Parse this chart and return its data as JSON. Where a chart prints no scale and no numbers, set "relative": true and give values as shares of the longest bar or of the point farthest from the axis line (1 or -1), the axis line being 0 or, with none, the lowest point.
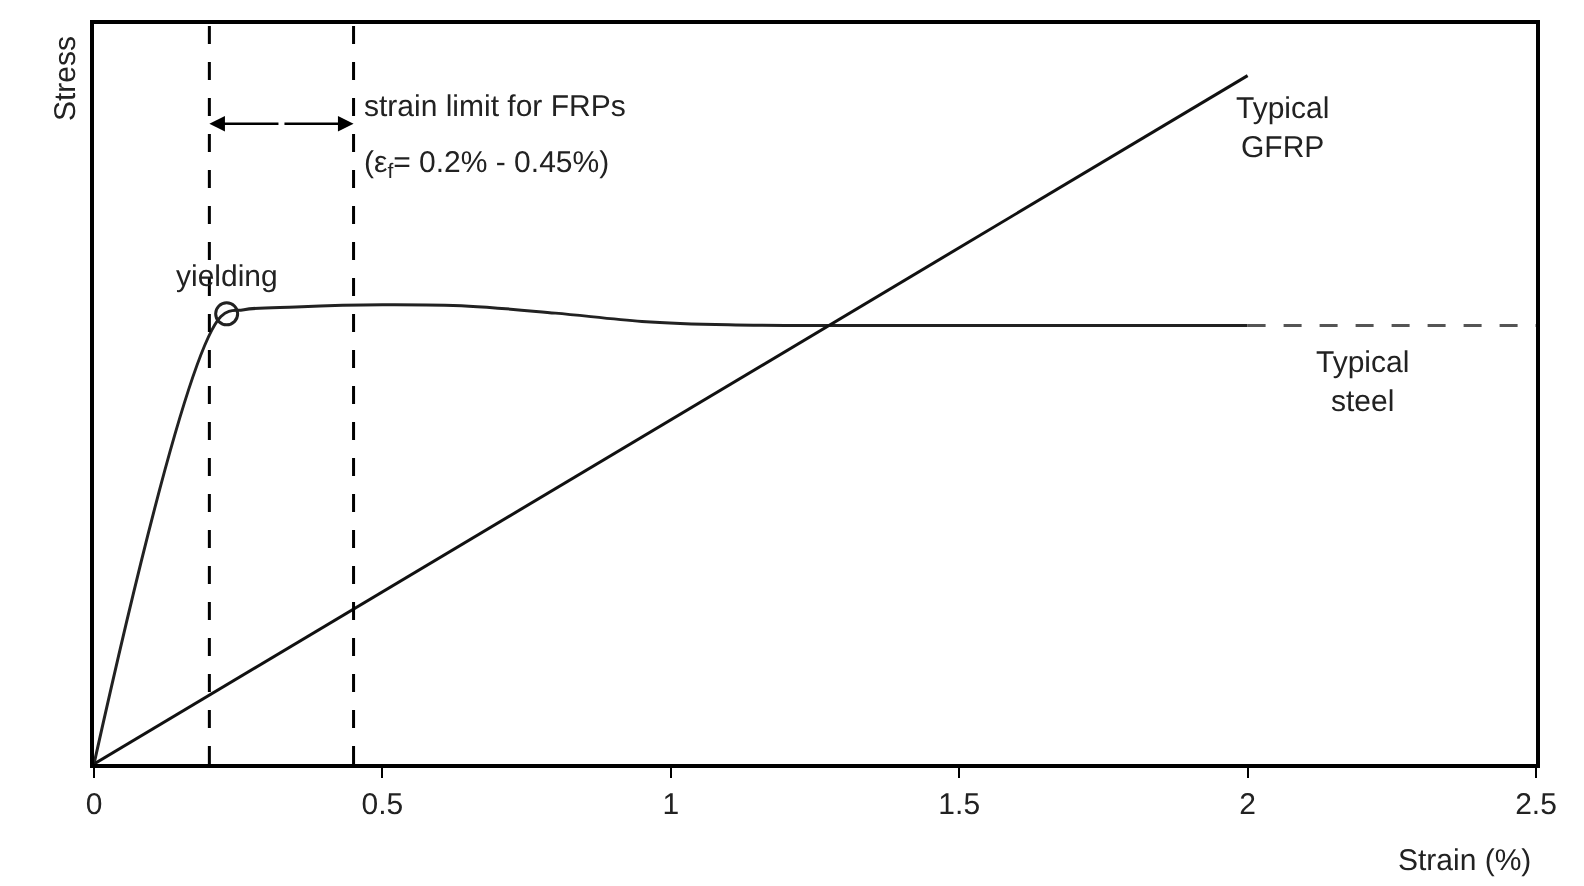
{
  "chart_data": {
    "type": "line",
    "relative": true,
    "xlabel": "Strain (%)",
    "ylabel": "Stress",
    "xlim": [
      0,
      2.5
    ],
    "xticks": [
      0,
      0.5,
      1,
      1.5,
      2,
      2.5
    ],
    "series": [
      {
        "color": "#222222",
        "x": [
          0,
          0.22,
          0.26,
          0.35,
          0.5,
          0.65,
          0.8,
          0.95,
          1.1,
          1.3,
          1.6,
          2.0
        ],
        "values": [
          0,
          0.65,
          0.66,
          0.664,
          0.667,
          0.665,
          0.655,
          0.643,
          0.638,
          0.637,
          0.637,
          0.637
        ],
        "line_style": "solid"
      },
      {
        "color": "#555555",
        "x": [
          2.0,
          2.5
        ],
        "values": [
          0.637,
          0.637
        ],
        "line_style": "dashed"
      },
      {
        "color": "#111111",
        "x": [
          0,
          2.0
        ],
        "values": [
          0,
          1
        ],
        "line_style": "solid"
      },
      {
        "type": "scatter",
        "color": "#222222",
        "x": [
          0.23
        ],
        "values": [
          0.654
        ],
        "marker": "circle"
      }
    ],
    "ref_lines": [
      {
        "axis": "x",
        "value": 0.2,
        "line_style": "dashed",
        "color": "#000000"
      },
      {
        "axis": "x",
        "value": 0.45,
        "line_style": "dashed",
        "color": "#000000"
      }
    ],
    "annotations": [
      "strain limit for FRPs",
      "(ε$_{f}$= 0.2% - 0.45%)",
      {
        "text": "yielding",
        "x": 0.23,
        "y": 0.654
      },
      {
        "text": "Typical\nGFRP",
        "x": 2.0,
        "y": 1
      },
      {
        "text": "Typical\nsteel",
        "x": 2.2,
        "y": 0.637
      }
    ]
  }
}
